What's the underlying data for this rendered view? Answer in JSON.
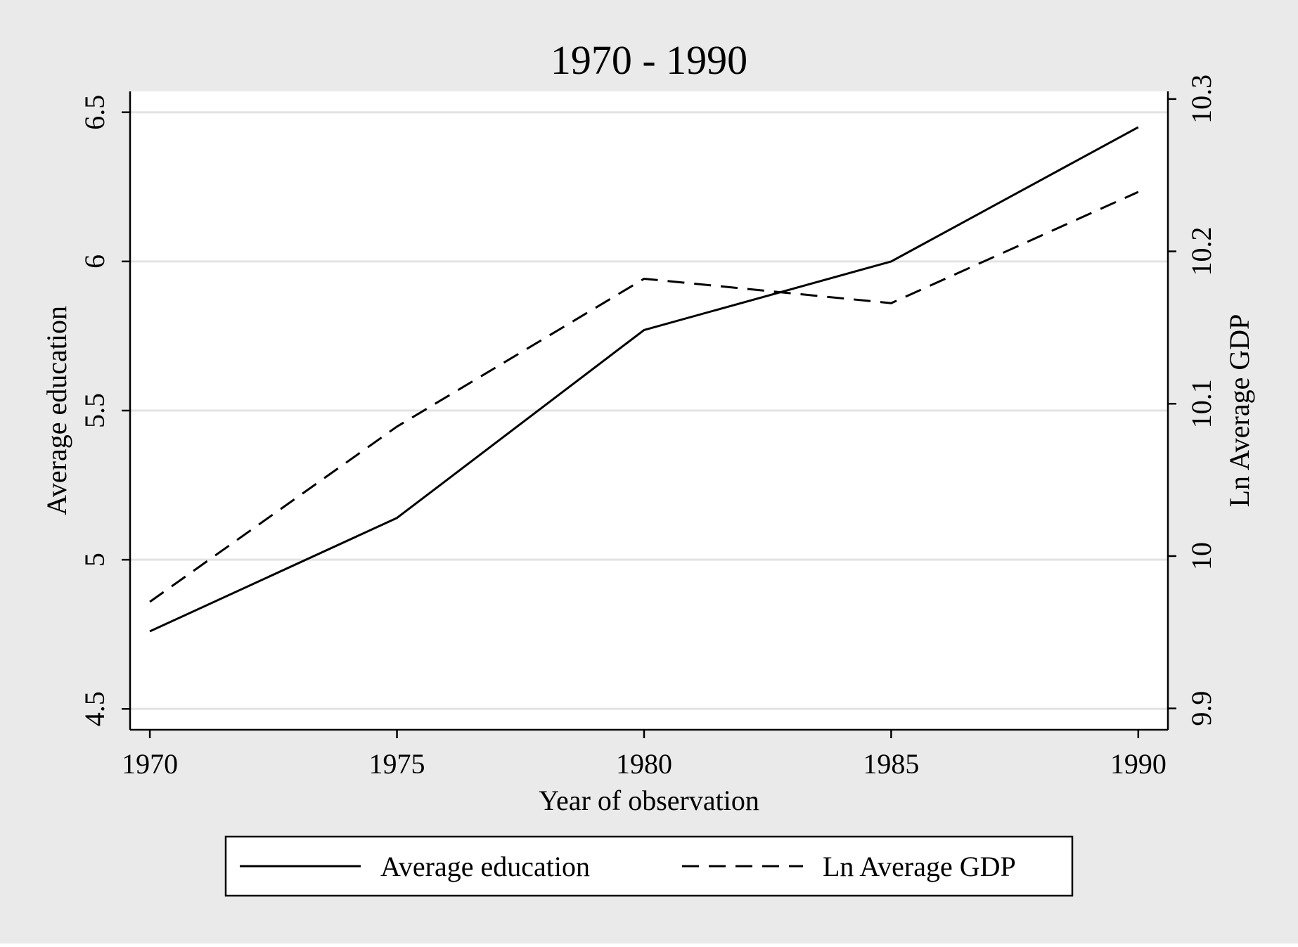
{
  "chart_data": {
    "type": "line",
    "title": "1970 - 1990",
    "xlabel": "Year of observation",
    "ylabel_left": "Average education",
    "ylabel_right": "Ln Average GDP",
    "x": [
      1970,
      1975,
      1980,
      1985,
      1990
    ],
    "xlim": [
      1969.6,
      1990.6
    ],
    "x_ticks": [
      "1970",
      "1975",
      "1980",
      "1985",
      "1990"
    ],
    "ylim_left": [
      4.43,
      6.57
    ],
    "ylim_right": [
      9.886,
      10.305
    ],
    "y_ticks_left": [
      "4.5",
      "5",
      "5.5",
      "6",
      "6.5"
    ],
    "y_ticks_right": [
      "9.9",
      "10",
      "10.1",
      "10.2",
      "10.3"
    ],
    "grid": true,
    "legend_position": "bottom",
    "series": [
      {
        "name": "Average education",
        "axis": "left",
        "style": "solid",
        "values": [
          4.76,
          5.14,
          5.77,
          6.0,
          6.45
        ]
      },
      {
        "name": "Ln Average GDP",
        "axis": "right",
        "style": "dashed",
        "values": [
          9.97,
          10.085,
          10.182,
          10.166,
          10.239
        ]
      }
    ],
    "colors": {
      "outer_background": "#eaeaea",
      "plot_background": "#ffffff",
      "grid": "#e3e3e3",
      "line": "#000000"
    }
  }
}
